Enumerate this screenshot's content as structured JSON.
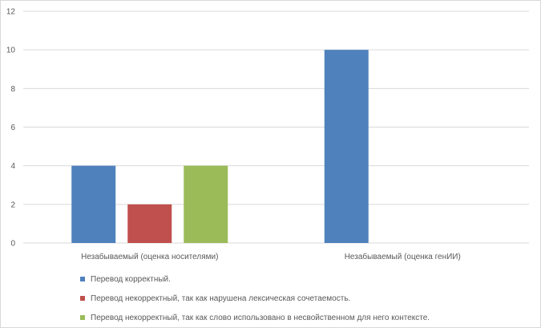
{
  "chart_data": {
    "type": "bar",
    "categories": [
      "Незабываемый (оценка носителями)",
      "Незабываемый (оценка генИИ)"
    ],
    "series": [
      {
        "name": "Перевод корректный.",
        "color": "#4f81bd",
        "values": [
          4,
          10
        ]
      },
      {
        "name": "Перевод некорректный, так как нарушена лексическая сочетаемость.",
        "color": "#c0504d",
        "values": [
          2,
          0
        ]
      },
      {
        "name": "Перевод некорректный, так как слово использовано в несвойственном для него контексте.",
        "color": "#9bbb59",
        "values": [
          4,
          0
        ]
      }
    ],
    "ylim": [
      0,
      12
    ],
    "yticks": [
      "0",
      "2",
      "4",
      "6",
      "8",
      "10",
      "12"
    ],
    "grid": true,
    "legend_position": "bottom-left"
  }
}
